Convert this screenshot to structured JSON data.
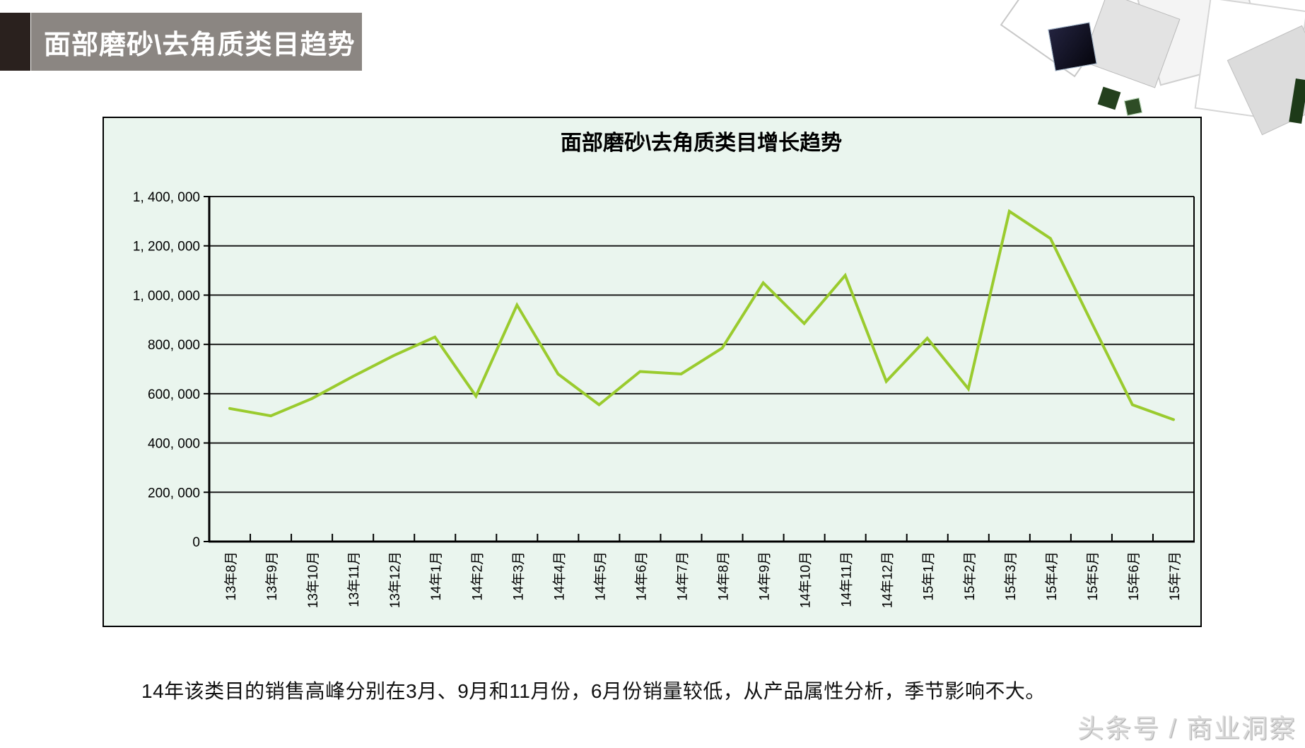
{
  "header": {
    "title": "面部磨砂\\去角质类目趋势"
  },
  "chart": {
    "title": "面部磨砂\\去角质类目增长趋势",
    "y_tick_labels": [
      "1, 400, 000",
      "1, 200, 000",
      "1, 000, 000",
      "800, 000",
      "600, 000",
      "400, 000",
      "200, 000",
      "0"
    ]
  },
  "chart_data": {
    "type": "line",
    "title": "面部磨砂\\去角质类目增长趋势",
    "categories": [
      "13年8月",
      "13年9月",
      "13年10月",
      "13年11月",
      "13年12月",
      "14年1月",
      "14年2月",
      "14年3月",
      "14年4月",
      "14年5月",
      "14年6月",
      "14年7月",
      "14年8月",
      "14年9月",
      "14年10月",
      "14年11月",
      "14年12月",
      "15年1月",
      "15年2月",
      "15年3月",
      "15年4月",
      "15年5月",
      "15年6月",
      "15年7月"
    ],
    "values": [
      540000,
      510000,
      580000,
      670000,
      755000,
      830000,
      590000,
      960000,
      680000,
      555000,
      690000,
      680000,
      785000,
      1050000,
      885000,
      1080000,
      650000,
      825000,
      620000,
      1340000,
      1230000,
      890000,
      555000,
      495000
    ],
    "xlabel": "",
    "ylabel": "",
    "ylim": [
      0,
      1400000
    ],
    "y_tick_step": 200000,
    "grid": true,
    "legend": false,
    "line_color": "#9ACB2E",
    "plot_bg": "#EAF5EE",
    "grid_color": "#1a1a1a",
    "axis_color": "#000000"
  },
  "caption": {
    "text": "14年该类目的销售高峰分别在3月、9月和11月份，6月份销量较低，从产品属性分析，季节影响不大。"
  },
  "watermark": {
    "text": "头条号 / 商业洞察"
  },
  "colors": {
    "header_bar": "#8B8682",
    "header_accent": "#2A211E",
    "chart_bg": "#EAF5EE",
    "line": "#9ACB2E"
  }
}
